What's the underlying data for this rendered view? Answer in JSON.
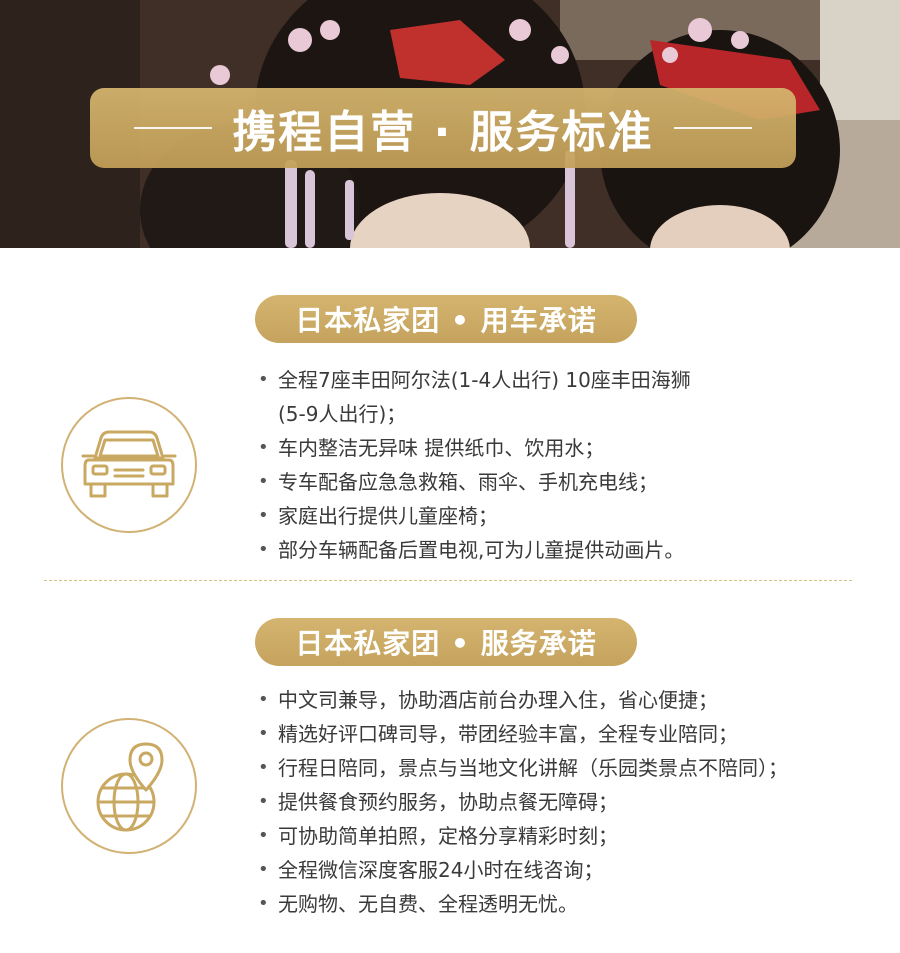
{
  "hero": {
    "title": "携程自营 · 服务标准"
  },
  "sections": [
    {
      "pill": "日本私家团 •  用车承诺",
      "icon": "car-icon",
      "items": [
        {
          "line1": "全程7座丰田阿尔法(1-4人出行) 10座丰田海狮",
          "line2": "(5-9人出行)；"
        },
        {
          "line1": "车内整洁无异味 提供纸巾、饮用水；"
        },
        {
          "line1": "专车配备应急急救箱、雨伞、手机充电线；"
        },
        {
          "line1": "家庭出行提供儿童座椅；"
        },
        {
          "line1": "部分车辆配备后置电视,可为儿童提供动画片。"
        }
      ]
    },
    {
      "pill": "日本私家团 •  服务承诺",
      "icon": "globe-location-icon",
      "items": [
        {
          "line1": "中文司兼导，协助酒店前台办理入住，省心便捷；"
        },
        {
          "line1": "精选好评口碑司导，带团经验丰富，全程专业陪同；"
        },
        {
          "line1": "行程日陪同，景点与当地文化讲解（乐园类景点不陪同）；"
        },
        {
          "line1": "提供餐食预约服务，协助点餐无障碍；"
        },
        {
          "line1": "可协助简单拍照，定格分享精彩时刻；"
        },
        {
          "line1": "全程微信深度客服24小时在线咨询；"
        },
        {
          "line1": "无购物、无自费、全程透明无忧。"
        }
      ]
    }
  ],
  "colors": {
    "gold": "#c9a862",
    "text": "#3a3a3a",
    "divider": "#d9c08a"
  }
}
